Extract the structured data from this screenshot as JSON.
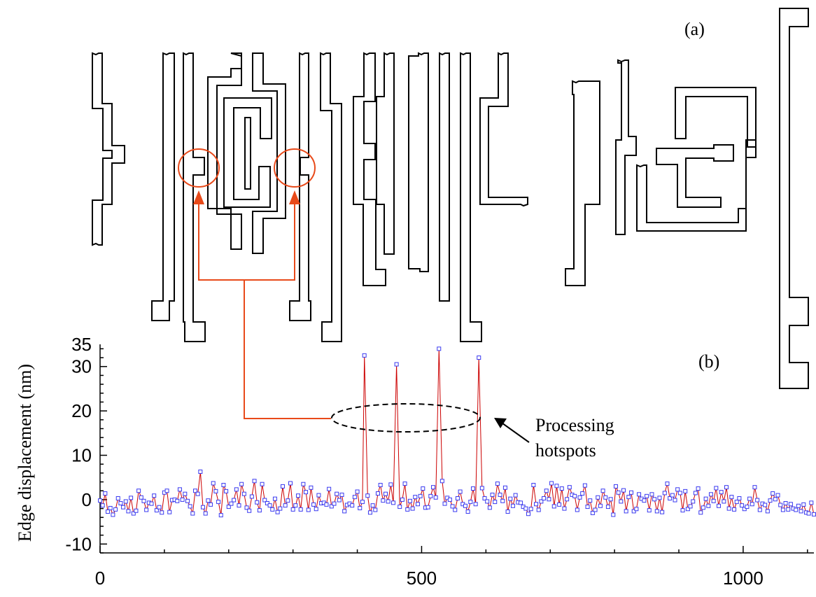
{
  "colors": {
    "marker": "#3a3af0",
    "series_line": "#cc0000",
    "annotation": "#e84a1a",
    "layout_lines": "#000000"
  },
  "labels": {
    "panel_a": "(a)",
    "panel_b": "(b)",
    "hotspot_annotation": [
      "Processing",
      "hotspots"
    ]
  },
  "chart_data": {
    "type": "line",
    "title": "",
    "xlabel": "",
    "ylabel": "Edge displacement (nm)",
    "xlim": [
      0,
      1110
    ],
    "ylim": [
      -12,
      35
    ],
    "xticks": [
      0,
      500,
      1000
    ],
    "yticks": [
      -10,
      0,
      10,
      20,
      30,
      35
    ],
    "grid": false,
    "marker": "open-square",
    "series": [
      {
        "hotspots": [
          {
            "x": 411,
            "y": 32.5
          },
          {
            "x": 461,
            "y": 30.5
          },
          {
            "x": 527,
            "y": 34.0
          },
          {
            "x": 589,
            "y": 32.0
          }
        ],
        "noise_points": [
          [
            0,
            -0.2
          ],
          [
            4,
            -1.3
          ],
          [
            8,
            1.4
          ],
          [
            12,
            -2.7
          ],
          [
            16,
            -1.9
          ],
          [
            20,
            -3.4
          ],
          [
            24,
            -2.2
          ],
          [
            28,
            0.3
          ],
          [
            32,
            -0.8
          ],
          [
            36,
            -1.7
          ],
          [
            40,
            -0.4
          ],
          [
            44,
            -2.6
          ],
          [
            48,
            0.4
          ],
          [
            52,
            -3.1
          ],
          [
            56,
            -2.5
          ],
          [
            60,
            2.0
          ],
          [
            64,
            0.5
          ],
          [
            68,
            -0.3
          ],
          [
            72,
            -2.3
          ],
          [
            76,
            -0.7
          ],
          [
            80,
            -0.9
          ],
          [
            84,
            0.9
          ],
          [
            88,
            -2.4
          ],
          [
            92,
            -1.7
          ],
          [
            96,
            -2.9
          ],
          [
            100,
            1.6
          ],
          [
            104,
            2.0
          ],
          [
            108,
            -2.8
          ],
          [
            112,
            -0.1
          ],
          [
            116,
            0.0
          ],
          [
            120,
            -0.3
          ],
          [
            124,
            2.3
          ],
          [
            128,
            0.0
          ],
          [
            132,
            1.3
          ],
          [
            136,
            -0.3
          ],
          [
            140,
            -1.5
          ],
          [
            144,
            -3.1
          ],
          [
            148,
            2.0
          ],
          [
            152,
            1.3
          ],
          [
            156,
            6.3
          ],
          [
            160,
            -1.7
          ],
          [
            164,
            -3.1
          ],
          [
            168,
            -0.2
          ],
          [
            172,
            -1.1
          ],
          [
            176,
            3.7
          ],
          [
            180,
            1.9
          ],
          [
            184,
            -0.5
          ],
          [
            188,
            -3.5
          ],
          [
            192,
            3.3
          ],
          [
            196,
            1.9
          ],
          [
            200,
            -1.6
          ],
          [
            204,
            -0.9
          ],
          [
            208,
            -0.1
          ],
          [
            212,
            2.3
          ],
          [
            216,
            -1.3
          ],
          [
            220,
            3.5
          ],
          [
            224,
            1.3
          ],
          [
            228,
            -1.8
          ],
          [
            232,
            -2.5
          ],
          [
            236,
            0.7
          ],
          [
            240,
            4.2
          ],
          [
            244,
            -0.6
          ],
          [
            248,
            -2.4
          ],
          [
            252,
            3.5
          ],
          [
            256,
            -0.1
          ],
          [
            260,
            -0.8
          ],
          [
            264,
            -1.3
          ],
          [
            268,
            -2.2
          ],
          [
            272,
            0.2
          ],
          [
            276,
            -2.8
          ],
          [
            280,
            -2.0
          ],
          [
            284,
            3.0
          ],
          [
            288,
            -1.3
          ],
          [
            292,
            -0.2
          ],
          [
            296,
            3.7
          ],
          [
            300,
            -2.2
          ],
          [
            304,
            -1.3
          ],
          [
            308,
            0.9
          ],
          [
            312,
            -2.2
          ],
          [
            316,
            3.5
          ],
          [
            320,
            1.7
          ],
          [
            324,
            -2.3
          ],
          [
            328,
            2.7
          ],
          [
            332,
            -1.1
          ],
          [
            336,
            -2.1
          ],
          [
            340,
            1.0
          ],
          [
            344,
            -0.8
          ],
          [
            348,
            -0.7
          ],
          [
            352,
            -1.1
          ],
          [
            356,
            2.4
          ],
          [
            360,
            -1.5
          ],
          [
            364,
            -0.9
          ],
          [
            368,
            1.3
          ],
          [
            372,
            -0.1
          ],
          [
            376,
            1.1
          ],
          [
            380,
            -2.6
          ],
          [
            384,
            -1.2
          ],
          [
            388,
            -0.9
          ],
          [
            392,
            -1.3
          ],
          [
            396,
            0.6
          ],
          [
            400,
            1.8
          ],
          [
            404,
            -1.9
          ],
          [
            408,
            -0.5
          ],
          [
            416,
            0.9
          ],
          [
            420,
            -2.9
          ],
          [
            424,
            -1.3
          ],
          [
            428,
            -2.3
          ],
          [
            432,
            1.4
          ],
          [
            436,
            3.3
          ],
          [
            440,
            -0.2
          ],
          [
            444,
            1.3
          ],
          [
            448,
            -0.4
          ],
          [
            452,
            3.4
          ],
          [
            456,
            -0.7
          ],
          [
            466,
            -1.6
          ],
          [
            470,
            0.0
          ],
          [
            474,
            3.6
          ],
          [
            478,
            -2.2
          ],
          [
            482,
            -0.3
          ],
          [
            486,
            -2.0
          ],
          [
            490,
            0.6
          ],
          [
            494,
            -1.0
          ],
          [
            498,
            0.8
          ],
          [
            502,
            2.5
          ],
          [
            506,
            -1.8
          ],
          [
            510,
            -1.7
          ],
          [
            514,
            0.8
          ],
          [
            518,
            2.8
          ],
          [
            522,
            0.5
          ],
          [
            532,
            4.2
          ],
          [
            536,
            -0.9
          ],
          [
            540,
            0.4
          ],
          [
            544,
            0.0
          ],
          [
            548,
            -1.5
          ],
          [
            552,
            -2.3
          ],
          [
            556,
            0.3
          ],
          [
            560,
            1.8
          ],
          [
            564,
            -1.0
          ],
          [
            568,
            -1.4
          ],
          [
            572,
            -2.7
          ],
          [
            576,
            -0.5
          ],
          [
            580,
            2.5
          ],
          [
            584,
            -1.0
          ],
          [
            594,
            2.6
          ],
          [
            598,
            0.3
          ],
          [
            602,
            -0.4
          ],
          [
            606,
            -1.8
          ],
          [
            610,
            1.1
          ],
          [
            614,
            -0.5
          ],
          [
            618,
            3.6
          ],
          [
            622,
            1.1
          ],
          [
            626,
            -0.3
          ],
          [
            630,
            2.7
          ],
          [
            634,
            -2.7
          ],
          [
            638,
            0.2
          ],
          [
            642,
            -1.4
          ],
          [
            646,
            1.0
          ],
          [
            650,
            -0.6
          ],
          [
            654,
            -0.7
          ],
          [
            658,
            -1.6
          ],
          [
            662,
            -2.0
          ],
          [
            666,
            -3.2
          ],
          [
            670,
            -2.1
          ],
          [
            674,
            3.3
          ],
          [
            678,
            -1.0
          ],
          [
            682,
            -2.3
          ],
          [
            686,
            -0.4
          ],
          [
            690,
            0.3
          ],
          [
            694,
            2.0
          ],
          [
            698,
            0.1
          ],
          [
            702,
            3.7
          ],
          [
            706,
            -1.5
          ],
          [
            710,
            3.1
          ],
          [
            714,
            -1.1
          ],
          [
            718,
            2.5
          ],
          [
            722,
            -2.0
          ],
          [
            726,
            0.1
          ],
          [
            730,
            2.8
          ],
          [
            734,
            1.1
          ],
          [
            738,
            0.8
          ],
          [
            742,
            -2.3
          ],
          [
            746,
            0.5
          ],
          [
            750,
            1.4
          ],
          [
            754,
            3.2
          ],
          [
            758,
            -1.6
          ],
          [
            762,
            -0.2
          ],
          [
            766,
            -3.0
          ],
          [
            770,
            -2.3
          ],
          [
            774,
            0.5
          ],
          [
            778,
            -1.4
          ],
          [
            782,
            2.0
          ],
          [
            786,
            0.5
          ],
          [
            790,
            -1.6
          ],
          [
            794,
            0.1
          ],
          [
            798,
            -3.4
          ],
          [
            802,
            3.0
          ],
          [
            806,
            1.6
          ],
          [
            810,
            -0.4
          ],
          [
            814,
            2.1
          ],
          [
            818,
            -2.6
          ],
          [
            822,
            0.6
          ],
          [
            826,
            1.6
          ],
          [
            830,
            -2.6
          ],
          [
            834,
            -2.1
          ],
          [
            838,
            1.2
          ],
          [
            842,
            0.2
          ],
          [
            846,
            -0.2
          ],
          [
            850,
            0.8
          ],
          [
            854,
            -2.4
          ],
          [
            858,
            1.2
          ],
          [
            862,
            0.1
          ],
          [
            866,
            -2.6
          ],
          [
            870,
            0.4
          ],
          [
            874,
            -2.8
          ],
          [
            878,
            1.5
          ],
          [
            882,
            3.6
          ],
          [
            886,
            0.3
          ],
          [
            890,
            1.0
          ],
          [
            894,
            -0.1
          ],
          [
            898,
            2.3
          ],
          [
            902,
            1.5
          ],
          [
            906,
            -2.4
          ],
          [
            910,
            1.9
          ],
          [
            914,
            -2.1
          ],
          [
            918,
            -1.5
          ],
          [
            922,
            -0.4
          ],
          [
            926,
            1.5
          ],
          [
            930,
            2.5
          ],
          [
            934,
            -2.9
          ],
          [
            938,
            -1.8
          ],
          [
            942,
            0.2
          ],
          [
            946,
            -1.4
          ],
          [
            950,
            1.2
          ],
          [
            954,
            -0.3
          ],
          [
            958,
            2.6
          ],
          [
            962,
            -1.4
          ],
          [
            966,
            1.7
          ],
          [
            970,
            -0.4
          ],
          [
            974,
            2.8
          ],
          [
            978,
            -2.0
          ],
          [
            982,
            0.6
          ],
          [
            986,
            -2.2
          ],
          [
            990,
            -0.5
          ],
          [
            994,
            0.3
          ],
          [
            998,
            -1.3
          ],
          [
            1002,
            -2.1
          ],
          [
            1006,
            -1.6
          ],
          [
            1010,
            0.2
          ],
          [
            1014,
            -1.0
          ],
          [
            1018,
            2.8
          ],
          [
            1022,
            -0.1
          ],
          [
            1026,
            -2.3
          ],
          [
            1030,
            -0.9
          ],
          [
            1034,
            -1.2
          ],
          [
            1038,
            -2.6
          ],
          [
            1042,
            -0.2
          ],
          [
            1046,
            1.4
          ],
          [
            1050,
            0.1
          ],
          [
            1054,
            1.0
          ],
          [
            1058,
            -1.2
          ],
          [
            1062,
            -2.3
          ],
          [
            1066,
            -0.8
          ],
          [
            1070,
            -2.2
          ],
          [
            1074,
            -1.0
          ],
          [
            1078,
            -2.0
          ],
          [
            1082,
            -2.3
          ],
          [
            1086,
            -1.4
          ],
          [
            1090,
            -2.6
          ],
          [
            1094,
            -1.1
          ],
          [
            1098,
            -2.9
          ],
          [
            1102,
            -3.1
          ],
          [
            1106,
            -0.7
          ],
          [
            1110,
            -3.3
          ]
        ]
      }
    ]
  }
}
